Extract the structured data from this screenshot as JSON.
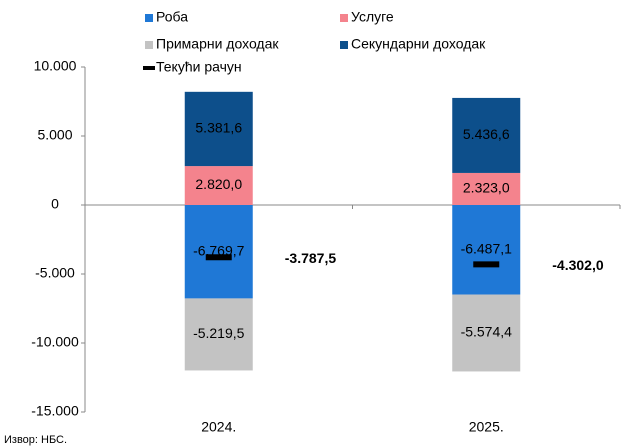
{
  "chart_data": {
    "type": "bar",
    "stacked": true,
    "categories": [
      "2024.",
      "2025."
    ],
    "series": [
      {
        "name": "Роба",
        "color": "#1f78d6",
        "values": [
          -6769.7,
          -6487.1
        ],
        "value_labels": [
          "-6.769,7",
          "-6.487,1"
        ]
      },
      {
        "name": "Услуге",
        "color": "#f4838d",
        "values": [
          2820.0,
          2323.0
        ],
        "value_labels": [
          "2.820,0",
          "2.323,0"
        ]
      },
      {
        "name": "Примарни доходак",
        "color": "#c3c3c3",
        "values": [
          -5219.5,
          -5574.4
        ],
        "value_labels": [
          "-5.219,5",
          "-5.574,4"
        ]
      },
      {
        "name": "Секундарни доходак",
        "color": "#0d4f8b",
        "values": [
          5381.6,
          5436.6
        ],
        "value_labels": [
          "5.381,6",
          "5.436,6"
        ]
      },
      {
        "name": "Текући рачун",
        "color": "#000000",
        "type": "marker",
        "values": [
          -3787.5,
          -4302.0
        ],
        "value_labels": [
          "-3.787,5",
          "-4.302,0"
        ]
      }
    ],
    "ylim": [
      -15000,
      10000
    ],
    "yticks": [
      {
        "value": -15000,
        "label": "-15.000"
      },
      {
        "value": -10000,
        "label": "-10.000"
      },
      {
        "value": -5000,
        "label": "-5.000"
      },
      0,
      {
        "value": 5000,
        "label": "5.000"
      },
      {
        "value": 10000,
        "label": "10.000"
      }
    ],
    "source": "Извор: НБС."
  }
}
